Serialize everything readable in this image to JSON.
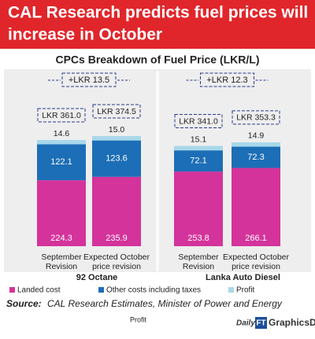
{
  "header": {
    "title_line1": "CAL Research predicts fuel prices will",
    "title_line2": "increase in October"
  },
  "chart_data": {
    "type": "bar",
    "stacked": true,
    "title": "CPCs Breakdown of Fuel Price (LKR/L)",
    "categories": [
      "September Revision",
      "Expected October price revision",
      "September Revision",
      "Expected October price revision"
    ],
    "groups": [
      "92 Octane",
      "Lanka Auto Diesel"
    ],
    "series": [
      {
        "name": "Landed cost",
        "color": "#d4339b",
        "values": [
          224.3,
          235.9,
          253.8,
          266.1
        ]
      },
      {
        "name": "Other costs including taxes",
        "color": "#1c6eb6",
        "values": [
          122.1,
          123.6,
          72.1,
          72.3
        ]
      },
      {
        "name": "Profit",
        "color": "#a8d8ea",
        "values": [
          14.6,
          15.0,
          15.1,
          14.9
        ],
        "value_labels": [
          "14.6",
          "15.0",
          "15.1",
          "14.9"
        ]
      }
    ],
    "totals": [
      "LKR 361.0",
      "LKR 374.5",
      "LKR 341.0",
      "LKR 353.3"
    ],
    "differences": [
      "+LKR 13.5",
      "+LKR 12.3"
    ]
  },
  "source": {
    "label": "Source:",
    "text": "CAL Research Estimates, Minister of Power and Energy"
  },
  "logo": {
    "daily": "Daily",
    "ft": "FT",
    "desk": "GraphicsDesk"
  },
  "stray_text": "Profit"
}
